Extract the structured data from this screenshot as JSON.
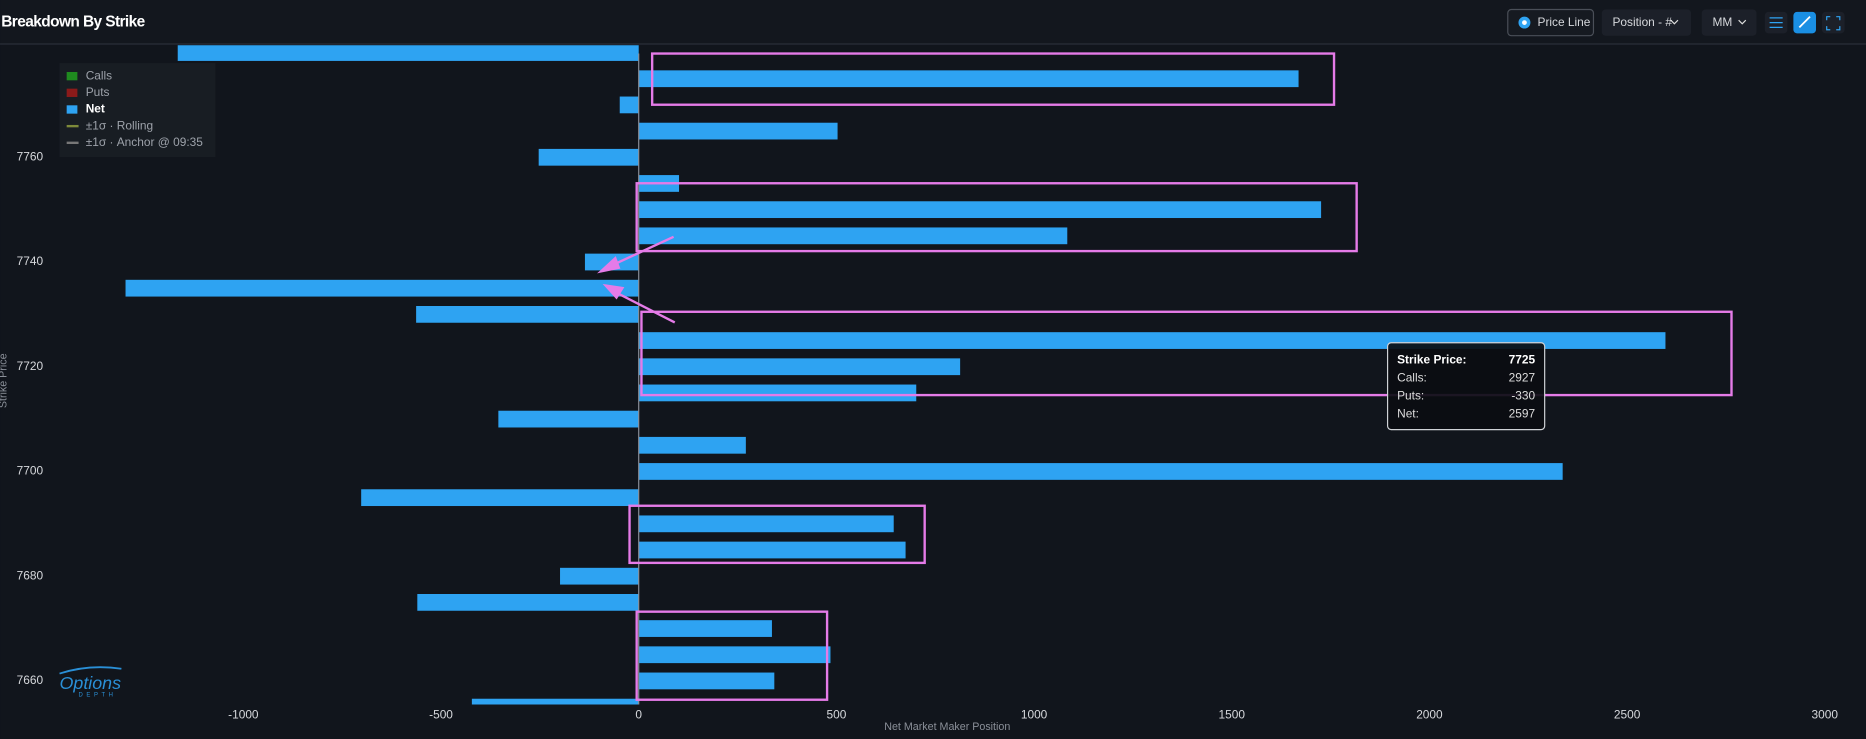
{
  "header": {
    "title": "Breakdown By Strike",
    "buttons": [
      "Price Line",
      "Position - #",
      "MM"
    ]
  },
  "chart_data": {
    "type": "barh",
    "x_label": "Net Market Maker Position",
    "y_label": "Strike Price",
    "y": [
      7780,
      7775,
      7770,
      7765,
      7760,
      7755,
      7750,
      7745,
      7740,
      7735,
      7730,
      7725,
      7720,
      7715,
      7710,
      7705,
      7700,
      7695,
      7690,
      7685,
      7680,
      7675,
      7670,
      7665,
      7660,
      7655
    ],
    "series": [
      {
        "name": "Net",
        "color": "#2ea3f2",
        "values": [
          -1166,
          1669,
          -48,
          503,
          -253,
          102,
          1726,
          1084,
          -136,
          -1298,
          -563,
          2597,
          813,
          702,
          -355,
          271,
          2337,
          -702,
          645,
          675,
          -199,
          -560,
          337,
          485,
          343,
          -422
        ]
      }
    ],
    "legend_items": [
      {
        "name": "Calls",
        "color": "#1f8a1f"
      },
      {
        "name": "Puts",
        "color": "#8b1a1a"
      },
      {
        "name": "Net",
        "color": "#2ea3f2"
      },
      {
        "name": "±1σ · Rolling",
        "color": "#7d8a3a"
      },
      {
        "name": "±1σ · Anchor @ 09:35",
        "color": "#777777"
      }
    ],
    "xlim": [
      -1480,
      3050
    ],
    "xticks": [
      -1000,
      -500,
      0,
      500,
      1000,
      1500,
      2000,
      2500,
      3000
    ],
    "ylim": [
      7655.5,
      7781.4
    ],
    "yticks": [
      7660,
      7680,
      7700,
      7720,
      7740,
      7760
    ],
    "tooltip": {
      "title": "Strike Price:",
      "title_value": "7725",
      "rows": [
        {
          "label": "Calls:",
          "value": "2927"
        },
        {
          "label": "Puts:",
          "value": "-330"
        },
        {
          "label": "Net:",
          "value": "2597"
        }
      ]
    },
    "logo": {
      "name": "Options",
      "sub": "DEPTH"
    }
  }
}
